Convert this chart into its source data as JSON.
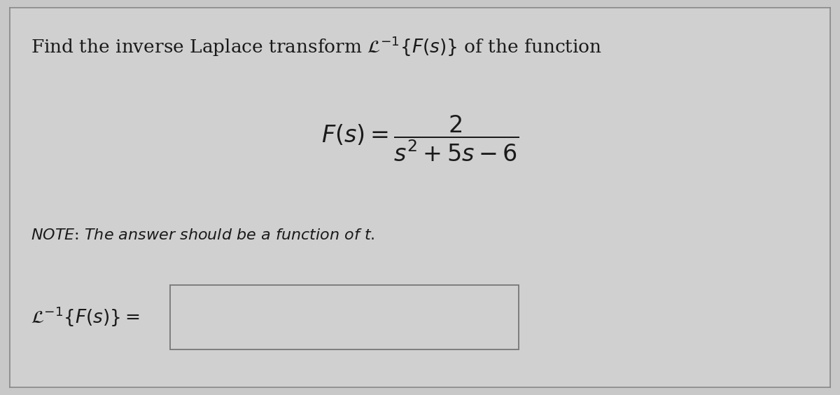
{
  "background_color": "#c8c8c8",
  "inner_bg_color": "#d0d0d0",
  "border_color": "#888888",
  "text_color": "#1a1a1a",
  "title_fontsize": 19,
  "formula_fontsize": 24,
  "note_fontsize": 16,
  "answer_fontsize": 19,
  "figsize": [
    12.0,
    5.64
  ],
  "dpi": 100,
  "box_edge_color": "#777777",
  "box_face_color": "#cccccc"
}
